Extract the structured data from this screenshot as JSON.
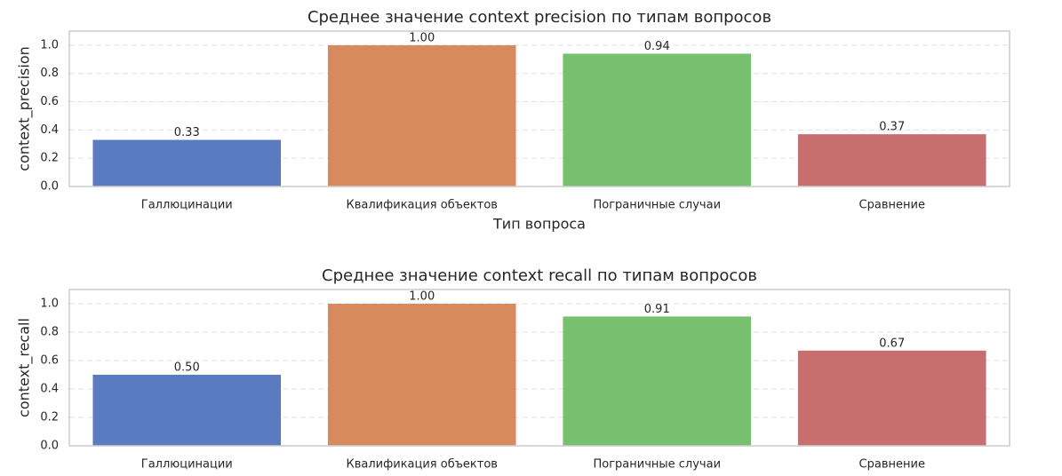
{
  "chart_data": [
    {
      "type": "bar",
      "title": "Среднее значение context precision по типам вопросов",
      "xlabel": "Тип вопроса",
      "ylabel": "context_precision",
      "categories": [
        "Галлюцинации",
        "Квалификация объектов",
        "Пограничные случаи",
        "Сравнение"
      ],
      "values": [
        0.33,
        1.0,
        0.94,
        0.37
      ],
      "value_labels": [
        "0.33",
        "1.00",
        "0.94",
        "0.37"
      ],
      "colors": [
        "#5a7bc0",
        "#d88a5f",
        "#76c06f",
        "#c76e6e"
      ],
      "ylim": [
        0,
        1.1
      ],
      "yticks": [
        {
          "value": 0,
          "label": "0.0"
        },
        0.2,
        0.4,
        0.6,
        0.8,
        {
          "value": 1,
          "label": "1.0"
        }
      ],
      "grid": true
    },
    {
      "type": "bar",
      "title": "Среднее значение context recall по типам вопросов",
      "ylabel": "context_recall",
      "categories": [
        "Галлюцинации",
        "Квалификация объектов",
        "Пограничные случаи",
        "Сравнение"
      ],
      "values": [
        0.5,
        1.0,
        0.91,
        0.67
      ],
      "value_labels": [
        "0.50",
        "1.00",
        "0.91",
        "0.67"
      ],
      "colors": [
        "#5a7bc0",
        "#d88a5f",
        "#76c06f",
        "#c76e6e"
      ],
      "ylim": [
        0,
        1.1
      ],
      "yticks": [
        {
          "value": 0,
          "label": "0.0"
        },
        0.2,
        0.4,
        0.6,
        0.8,
        {
          "value": 1,
          "label": "1.0"
        }
      ],
      "grid": true
    }
  ]
}
